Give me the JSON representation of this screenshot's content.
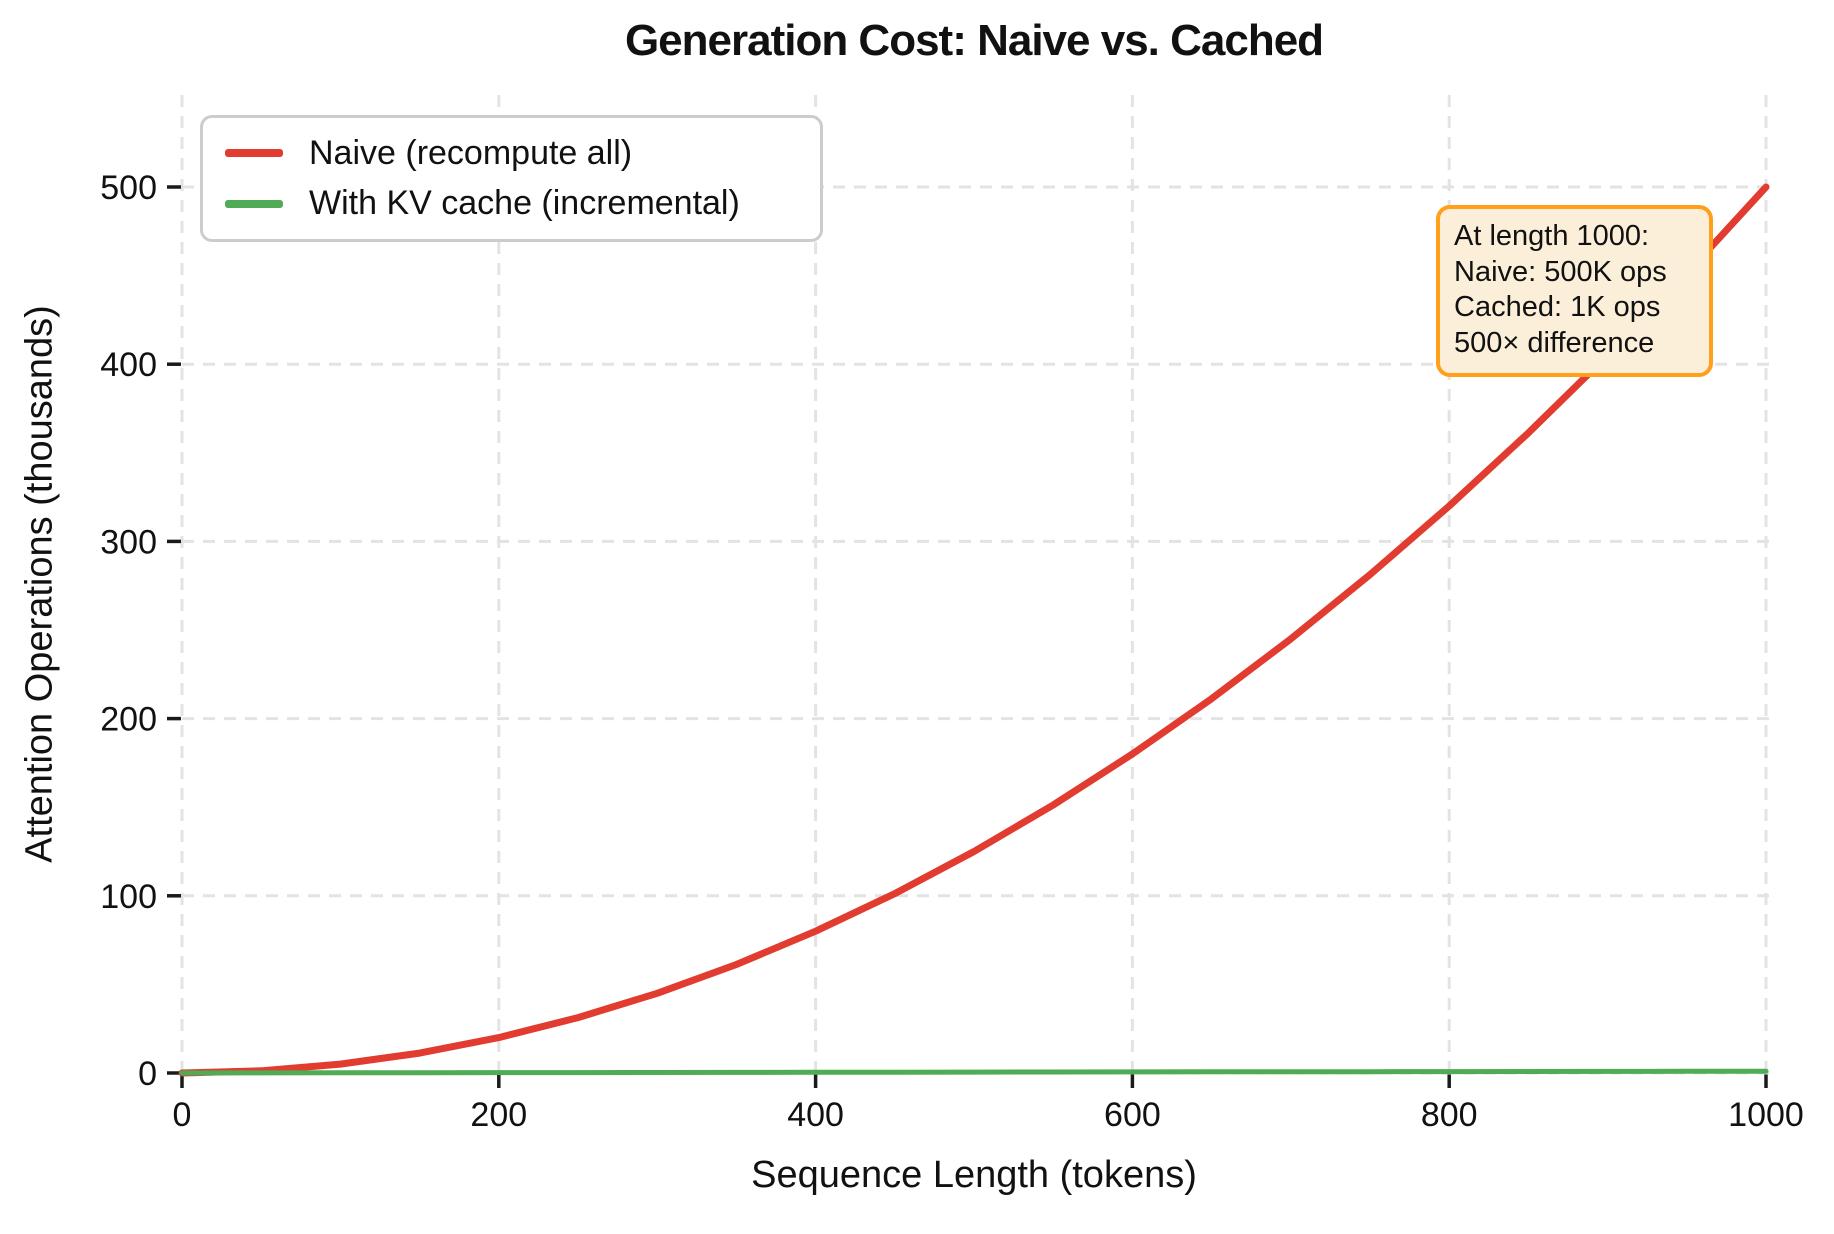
{
  "chart_data": {
    "type": "line",
    "title": "Generation Cost: Naive vs. Cached",
    "xlabel": "Sequence Length (tokens)",
    "ylabel": "Attention Operations (thousands)",
    "xlim": [
      0,
      1000
    ],
    "ylim": [
      0,
      552
    ],
    "xticks": [
      0,
      200,
      400,
      600,
      800,
      1000
    ],
    "yticks": [
      0,
      100,
      200,
      300,
      400,
      500
    ],
    "grid": true,
    "grid_style": "dashed",
    "grid_color": "#e3e3e3",
    "legend_position": "upper left",
    "x": [
      0,
      50,
      100,
      150,
      200,
      250,
      300,
      350,
      400,
      450,
      500,
      550,
      600,
      650,
      700,
      750,
      800,
      850,
      900,
      950,
      1000
    ],
    "series": [
      {
        "name": "Naive (recompute all)",
        "color": "#e23b30",
        "line_width": 7,
        "values": [
          0,
          1.25,
          5,
          11.25,
          20,
          31.25,
          45,
          61.25,
          80,
          101.25,
          125,
          151.25,
          180,
          211.25,
          245,
          281.25,
          320,
          361.25,
          405,
          451.25,
          500
        ]
      },
      {
        "name": "With KV cache (incremental)",
        "color": "#4fab54",
        "line_width": 5,
        "values": [
          0,
          0.05,
          0.1,
          0.15,
          0.2,
          0.25,
          0.3,
          0.35,
          0.4,
          0.45,
          0.5,
          0.55,
          0.6,
          0.65,
          0.7,
          0.75,
          0.8,
          0.85,
          0.9,
          0.95,
          1
        ]
      }
    ],
    "annotation": {
      "anchor_x": 1000,
      "anchor_y": 500,
      "lines": [
        "At length 1000:",
        "Naive: 500K ops",
        "Cached: 1K ops",
        "500× difference"
      ],
      "border_color": "#ff9f1a",
      "background_color": "#fcefd9"
    }
  }
}
